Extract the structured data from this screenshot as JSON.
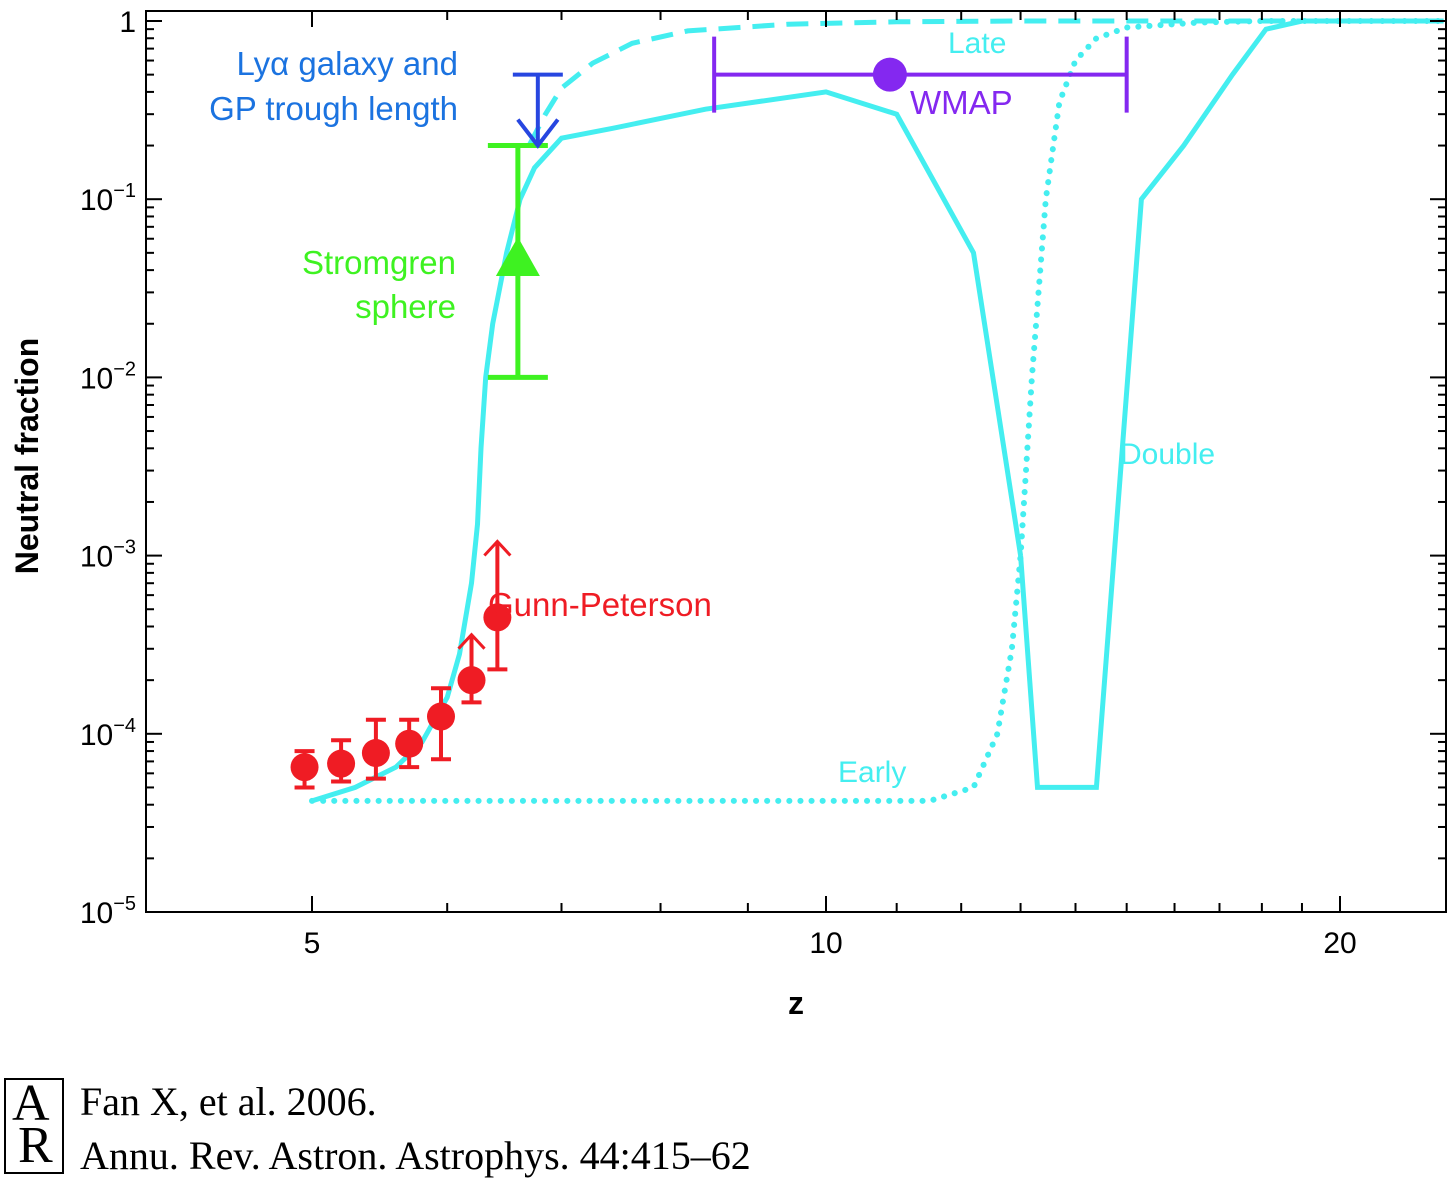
{
  "chart_data": {
    "type": "line",
    "xlabel": "z",
    "ylabel": "Neutral fraction",
    "x_scale": "log",
    "y_scale": "log",
    "xlim": [
      4.0,
      23.0
    ],
    "ylim": [
      1e-05,
      1.15
    ],
    "x_ticks_labeled": [
      {
        "value": 5,
        "label": "5"
      },
      {
        "value": 10,
        "label": "10"
      },
      {
        "value": 20,
        "label": "20"
      }
    ],
    "x_ticks_minor": [
      6,
      7,
      8,
      9,
      11,
      12,
      13,
      14,
      15,
      16,
      17,
      18,
      19
    ],
    "y_ticks": [
      {
        "value": 1,
        "base": "1",
        "exp": ""
      },
      {
        "value": 0.1,
        "base": "10",
        "exp": "−1"
      },
      {
        "value": 0.01,
        "base": "10",
        "exp": "−2"
      },
      {
        "value": 0.001,
        "base": "10",
        "exp": "−3"
      },
      {
        "value": 0.0001,
        "base": "10",
        "exp": "−4"
      },
      {
        "value": 1e-05,
        "base": "10",
        "exp": "−5"
      }
    ],
    "series": [
      {
        "name": "Late",
        "style": "solid",
        "color": "#44eef0",
        "x": [
          5.0,
          5.3,
          5.6,
          5.8,
          6.0,
          6.1,
          6.2,
          6.25,
          6.28,
          6.32,
          6.38,
          6.5,
          6.62,
          6.75,
          7.0,
          7.5,
          8.5,
          10.0,
          11.0,
          12.2,
          13.0
        ],
        "y": [
          4.2e-05,
          5e-05,
          6.5e-05,
          9e-05,
          0.00016,
          0.00028,
          0.0007,
          0.0015,
          0.004,
          0.01,
          0.02,
          0.05,
          0.1,
          0.15,
          0.22,
          0.25,
          0.32,
          0.4,
          0.3,
          0.05,
          0.001
        ]
      },
      {
        "name": "Double",
        "style": "solid",
        "color": "#44eef0",
        "x": [
          13.0,
          13.3,
          14.4,
          15.3,
          16.2,
          17.3,
          18.1,
          19.0,
          20.0,
          23.0
        ],
        "y": [
          0.001,
          5e-05,
          5e-05,
          0.1,
          0.2,
          0.5,
          0.9,
          1.0,
          1.0,
          1.0
        ]
      },
      {
        "name": "",
        "style": "dashed",
        "color": "#44eef0",
        "x": [
          6.7,
          6.85,
          7.0,
          7.3,
          7.7,
          8.3,
          9.5,
          11.0,
          13.0,
          16.0,
          20.0
        ],
        "y": [
          0.2,
          0.3,
          0.42,
          0.58,
          0.75,
          0.88,
          0.96,
          0.99,
          1.0,
          1.0,
          1.0
        ]
      },
      {
        "name": "Early",
        "style": "dotted",
        "color": "#44eef0",
        "x": [
          5.0,
          6.0,
          8.0,
          10.0,
          11.5,
          12.2,
          12.6,
          12.85,
          13.0,
          13.2,
          13.45,
          13.7,
          14.0,
          14.4,
          15.0,
          16.5,
          18.0,
          20.0,
          23.0
        ],
        "y": [
          4.2e-05,
          4.2e-05,
          4.2e-05,
          4.2e-05,
          4.2e-05,
          5e-05,
          0.0001,
          0.0003,
          0.001,
          0.01,
          0.1,
          0.35,
          0.6,
          0.8,
          0.92,
          0.98,
          1.0,
          1.0,
          1.0
        ]
      }
    ],
    "gunn_peterson_points": [
      {
        "x": 4.95,
        "y": 6.5e-05,
        "ylo": 5e-05,
        "yhi": 8e-05,
        "lower_limit": false
      },
      {
        "x": 5.2,
        "y": 6.8e-05,
        "ylo": 5.4e-05,
        "yhi": 9.2e-05,
        "lower_limit": false
      },
      {
        "x": 5.45,
        "y": 7.8e-05,
        "ylo": 5.6e-05,
        "yhi": 0.00012,
        "lower_limit": false
      },
      {
        "x": 5.7,
        "y": 8.8e-05,
        "ylo": 6.5e-05,
        "yhi": 0.00012,
        "lower_limit": false
      },
      {
        "x": 5.95,
        "y": 0.000125,
        "ylo": 7.2e-05,
        "yhi": 0.00018,
        "lower_limit": false
      },
      {
        "x": 6.2,
        "y": 0.0002,
        "ylo": 0.00015,
        "yhi": 0.00036,
        "lower_limit": true
      },
      {
        "x": 6.42,
        "y": 0.00045,
        "ylo": 0.00023,
        "yhi": 0.0012,
        "lower_limit": true
      }
    ],
    "stromgren_sphere": {
      "x": 6.6,
      "y": 0.045,
      "ylo": 0.01,
      "yhi": 0.2
    },
    "lya_galaxy_upper_limit": {
      "x": 6.78,
      "y_from": 0.5,
      "y_to": 0.2
    },
    "wmap": {
      "x": 10.9,
      "y": 0.5,
      "xlo": 8.6,
      "xhi": 15.0
    },
    "annotations": {
      "lya_line1": "Lyα galaxy and",
      "lya_line2": "GP trough length",
      "stromgren_line1": "Stromgren",
      "stromgren_line2": "sphere",
      "gunn_peterson": "Gunn-Peterson",
      "wmap": "WMAP",
      "late": "Late",
      "early": "Early",
      "double": "Double"
    },
    "colors": {
      "model": "#44eef0",
      "gunn_peterson": "#ef1c24",
      "stromgren": "#3ef221",
      "lya": "#2746e0",
      "lya_text": "#1b73e0",
      "wmap": "#8428f0"
    },
    "grid": false,
    "legend": "none"
  },
  "citation": {
    "logo_top": "A",
    "logo_bottom": "R",
    "line1": "Fan X, et al. 2006.",
    "line2": "Annu. Rev. Astron. Astrophys. 44:415–62"
  }
}
